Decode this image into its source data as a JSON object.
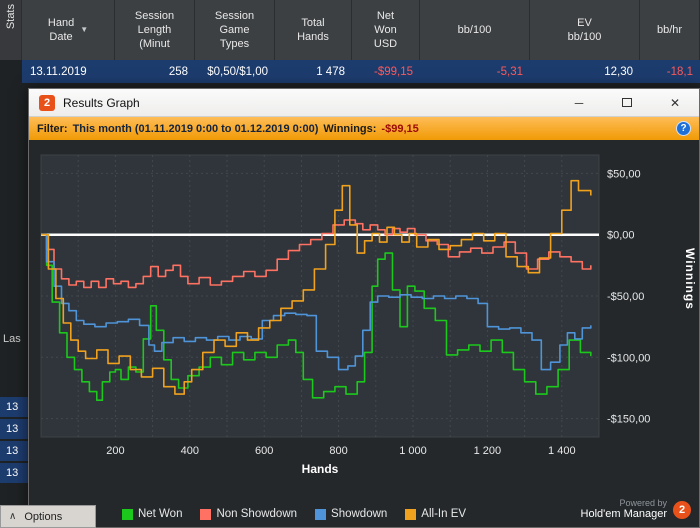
{
  "background": {
    "stats_tab_label": "Stats",
    "table": {
      "columns": [
        "Hand\nDate",
        "Session\nLength\n(Minut",
        "Session\nGame\nTypes",
        "Total\nHands",
        "Net\nWon\nUSD",
        "bb/100",
        "EV\nbb/100",
        "bb/hr"
      ],
      "row": {
        "hand_date": "13.11.2019",
        "session_length": "258",
        "game_types": "$0,50/$1,00",
        "total_hands": "1 478",
        "net_won": "-$99,15",
        "bb100": "-5,31",
        "ev_bb100": "12,30",
        "bb_hr": "-18,1"
      }
    },
    "left_partial_label": "Las",
    "left_rows": [
      "13",
      "13",
      "13",
      "13"
    ],
    "options": {
      "chevron": "∧",
      "label": "Options"
    }
  },
  "window": {
    "title": "Results Graph",
    "logo_glyph": "2",
    "controls": {
      "minimize": "─",
      "close": "✕"
    },
    "filter": {
      "label": "Filter:",
      "range": "This month (01.11.2019 0:00 to 01.12.2019 0:00)",
      "winnings_label": "Winnings:",
      "winnings_value": "-$99,15",
      "help_glyph": "?"
    },
    "powered_by": {
      "line1": "Powered by",
      "line2": "Hold'em Manager",
      "logo_glyph": "2"
    }
  },
  "chart_data": {
    "type": "line",
    "title": "Results Graph",
    "xlabel": "Hands",
    "ylabel": "Winnings",
    "xlim": [
      0,
      1500
    ],
    "ylim": [
      -165,
      65
    ],
    "x_ticks": [
      200,
      400,
      600,
      800,
      1000,
      1200,
      1400
    ],
    "x_tick_labels": [
      "200",
      "400",
      "600",
      "800",
      "1 000",
      "1 200",
      "1 400"
    ],
    "y_ticks": [
      50,
      0,
      -50,
      -100,
      -150
    ],
    "y_tick_labels": [
      "$50,00",
      "$0,00",
      "-$50,00",
      "-$100,00",
      "-$150,00"
    ],
    "zero_line": 0,
    "grid": true,
    "legend_position": "bottom",
    "series": [
      {
        "name": "Net Won",
        "color": "#1dc81d",
        "points": [
          [
            0,
            0
          ],
          [
            15,
            -25
          ],
          [
            30,
            -55
          ],
          [
            50,
            -80
          ],
          [
            70,
            -100
          ],
          [
            90,
            -110
          ],
          [
            110,
            -120
          ],
          [
            130,
            -128
          ],
          [
            150,
            -135
          ],
          [
            165,
            -120
          ],
          [
            185,
            -112
          ],
          [
            200,
            -110
          ],
          [
            215,
            -118
          ],
          [
            235,
            -108
          ],
          [
            255,
            -112
          ],
          [
            275,
            -85
          ],
          [
            295,
            -58
          ],
          [
            310,
            -78
          ],
          [
            330,
            -102
          ],
          [
            350,
            -118
          ],
          [
            370,
            -125
          ],
          [
            395,
            -115
          ],
          [
            425,
            -108
          ],
          [
            455,
            -100
          ],
          [
            485,
            -106
          ],
          [
            515,
            -96
          ],
          [
            545,
            -102
          ],
          [
            575,
            -96
          ],
          [
            605,
            -100
          ],
          [
            635,
            -90
          ],
          [
            665,
            -86
          ],
          [
            685,
            -96
          ],
          [
            705,
            -118
          ],
          [
            730,
            -133
          ],
          [
            760,
            -128
          ],
          [
            790,
            -124
          ],
          [
            820,
            -130
          ],
          [
            850,
            -120
          ],
          [
            870,
            -96
          ],
          [
            890,
            -42
          ],
          [
            905,
            -20
          ],
          [
            925,
            -15
          ],
          [
            945,
            -45
          ],
          [
            965,
            -75
          ],
          [
            985,
            -42
          ],
          [
            1005,
            -46
          ],
          [
            1030,
            -60
          ],
          [
            1060,
            -70
          ],
          [
            1090,
            -98
          ],
          [
            1120,
            -94
          ],
          [
            1150,
            -90
          ],
          [
            1180,
            -95
          ],
          [
            1210,
            -86
          ],
          [
            1240,
            -96
          ],
          [
            1270,
            -110
          ],
          [
            1300,
            -120
          ],
          [
            1330,
            -130
          ],
          [
            1360,
            -124
          ],
          [
            1390,
            -110
          ],
          [
            1420,
            -86
          ],
          [
            1450,
            -96
          ],
          [
            1478,
            -99
          ]
        ]
      },
      {
        "name": "Non Showdown",
        "color": "#ff7263",
        "points": [
          [
            0,
            0
          ],
          [
            15,
            -12
          ],
          [
            35,
            -28
          ],
          [
            55,
            -36
          ],
          [
            75,
            -41
          ],
          [
            95,
            -38
          ],
          [
            115,
            -43
          ],
          [
            135,
            -38
          ],
          [
            155,
            -43
          ],
          [
            175,
            -36
          ],
          [
            195,
            -40
          ],
          [
            215,
            -38
          ],
          [
            235,
            -43
          ],
          [
            255,
            -40
          ],
          [
            275,
            -34
          ],
          [
            295,
            -26
          ],
          [
            315,
            -34
          ],
          [
            335,
            -29
          ],
          [
            355,
            -25
          ],
          [
            375,
            -34
          ],
          [
            395,
            -40
          ],
          [
            425,
            -35
          ],
          [
            455,
            -41
          ],
          [
            485,
            -38
          ],
          [
            515,
            -34
          ],
          [
            545,
            -30
          ],
          [
            575,
            -34
          ],
          [
            605,
            -29
          ],
          [
            635,
            -20
          ],
          [
            665,
            -13
          ],
          [
            695,
            -8
          ],
          [
            725,
            -4
          ],
          [
            755,
            1
          ],
          [
            785,
            8
          ],
          [
            815,
            12
          ],
          [
            845,
            9
          ],
          [
            865,
            4
          ],
          [
            885,
            8
          ],
          [
            905,
            4
          ],
          [
            925,
            0
          ],
          [
            945,
            5
          ],
          [
            965,
            2
          ],
          [
            985,
            5
          ],
          [
            1005,
            0
          ],
          [
            1035,
            -5
          ],
          [
            1065,
            -8
          ],
          [
            1095,
            -18
          ],
          [
            1125,
            -14
          ],
          [
            1155,
            -11
          ],
          [
            1185,
            -15
          ],
          [
            1215,
            -10
          ],
          [
            1245,
            -6
          ],
          [
            1275,
            -15
          ],
          [
            1305,
            -28
          ],
          [
            1335,
            -20
          ],
          [
            1365,
            -14
          ],
          [
            1395,
            -18
          ],
          [
            1425,
            -22
          ],
          [
            1455,
            -28
          ],
          [
            1478,
            -25
          ]
        ]
      },
      {
        "name": "Showdown",
        "color": "#4f94d8",
        "points": [
          [
            0,
            0
          ],
          [
            15,
            -22
          ],
          [
            35,
            -42
          ],
          [
            55,
            -56
          ],
          [
            75,
            -62
          ],
          [
            95,
            -70
          ],
          [
            115,
            -73
          ],
          [
            145,
            -75
          ],
          [
            175,
            -72
          ],
          [
            205,
            -71
          ],
          [
            235,
            -69
          ],
          [
            265,
            -74
          ],
          [
            290,
            -90
          ],
          [
            305,
            -95
          ],
          [
            325,
            -88
          ],
          [
            355,
            -84
          ],
          [
            385,
            -87
          ],
          [
            415,
            -84
          ],
          [
            445,
            -86
          ],
          [
            475,
            -83
          ],
          [
            505,
            -86
          ],
          [
            535,
            -83
          ],
          [
            565,
            -85
          ],
          [
            595,
            -70
          ],
          [
            625,
            -66
          ],
          [
            655,
            -64
          ],
          [
            685,
            -65
          ],
          [
            715,
            -66
          ],
          [
            740,
            -95
          ],
          [
            770,
            -100
          ],
          [
            800,
            -110
          ],
          [
            825,
            -107
          ],
          [
            845,
            -99
          ],
          [
            865,
            -78
          ],
          [
            885,
            -55
          ],
          [
            905,
            -50
          ],
          [
            935,
            -51
          ],
          [
            965,
            -49
          ],
          [
            995,
            -51
          ],
          [
            1025,
            -52
          ],
          [
            1055,
            -50
          ],
          [
            1085,
            -52
          ],
          [
            1115,
            -50
          ],
          [
            1145,
            -52
          ],
          [
            1175,
            -56
          ],
          [
            1200,
            -75
          ],
          [
            1230,
            -77
          ],
          [
            1260,
            -76
          ],
          [
            1290,
            -80
          ],
          [
            1320,
            -86
          ],
          [
            1345,
            -110
          ],
          [
            1370,
            -104
          ],
          [
            1395,
            -90
          ],
          [
            1415,
            -80
          ],
          [
            1435,
            -85
          ],
          [
            1455,
            -76
          ],
          [
            1478,
            -74
          ]
        ]
      },
      {
        "name": "All-In EV",
        "color": "#f0a21e",
        "points": [
          [
            0,
            0
          ],
          [
            20,
            -28
          ],
          [
            40,
            -52
          ],
          [
            60,
            -72
          ],
          [
            80,
            -86
          ],
          [
            100,
            -95
          ],
          [
            120,
            -101
          ],
          [
            150,
            -94
          ],
          [
            180,
            -105
          ],
          [
            210,
            -99
          ],
          [
            240,
            -110
          ],
          [
            270,
            -116
          ],
          [
            300,
            -109
          ],
          [
            330,
            -124
          ],
          [
            360,
            -130
          ],
          [
            385,
            -120
          ],
          [
            405,
            -110
          ],
          [
            435,
            -96
          ],
          [
            465,
            -86
          ],
          [
            495,
            -91
          ],
          [
            525,
            -80
          ],
          [
            555,
            -86
          ],
          [
            585,
            -76
          ],
          [
            615,
            -70
          ],
          [
            645,
            -60
          ],
          [
            675,
            -54
          ],
          [
            705,
            -45
          ],
          [
            735,
            -28
          ],
          [
            765,
            -8
          ],
          [
            790,
            20
          ],
          [
            810,
            40
          ],
          [
            830,
            8
          ],
          [
            850,
            -15
          ],
          [
            870,
            -5
          ],
          [
            890,
            1
          ],
          [
            910,
            -6
          ],
          [
            930,
            6
          ],
          [
            950,
            0
          ],
          [
            970,
            -6
          ],
          [
            990,
            1
          ],
          [
            1010,
            -10
          ],
          [
            1040,
            -4
          ],
          [
            1070,
            -12
          ],
          [
            1100,
            -9
          ],
          [
            1130,
            -4
          ],
          [
            1160,
            1
          ],
          [
            1190,
            -5
          ],
          [
            1220,
            1
          ],
          [
            1250,
            -18
          ],
          [
            1280,
            -26
          ],
          [
            1310,
            -31
          ],
          [
            1340,
            -19
          ],
          [
            1370,
            1
          ],
          [
            1400,
            20
          ],
          [
            1425,
            44
          ],
          [
            1445,
            36
          ],
          [
            1478,
            32
          ]
        ]
      }
    ]
  }
}
